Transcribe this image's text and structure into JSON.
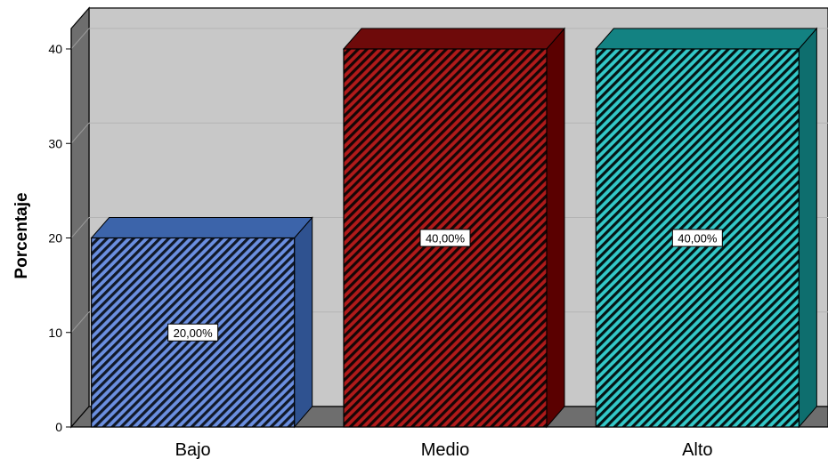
{
  "chart_data": {
    "type": "bar",
    "categories": [
      "Bajo",
      "Medio",
      "Alto"
    ],
    "values": [
      20,
      40,
      40
    ],
    "data_labels": [
      "20,00%",
      "40,00%",
      "40,00%"
    ],
    "ylabel": "Porcentaje",
    "xlabel": "",
    "ylim": [
      0,
      40
    ],
    "yticks": [
      0,
      10,
      20,
      30,
      40
    ],
    "grid": true,
    "three_d": true,
    "colors": {
      "Bajo": {
        "front": "#6b8fe0",
        "hatch": "#101828",
        "side": "#2f5290",
        "top": "#3c64aa"
      },
      "Medio": {
        "front": "#b01a1a",
        "hatch": "#140606",
        "side": "#5a0000",
        "top": "#6e0a0a"
      },
      "Alto": {
        "front": "#33c8c8",
        "hatch": "#031414",
        "side": "#0e6e6e",
        "top": "#138282"
      }
    },
    "plot_bg": "#c8c8c8",
    "wall_color": "#6e6e6e"
  }
}
